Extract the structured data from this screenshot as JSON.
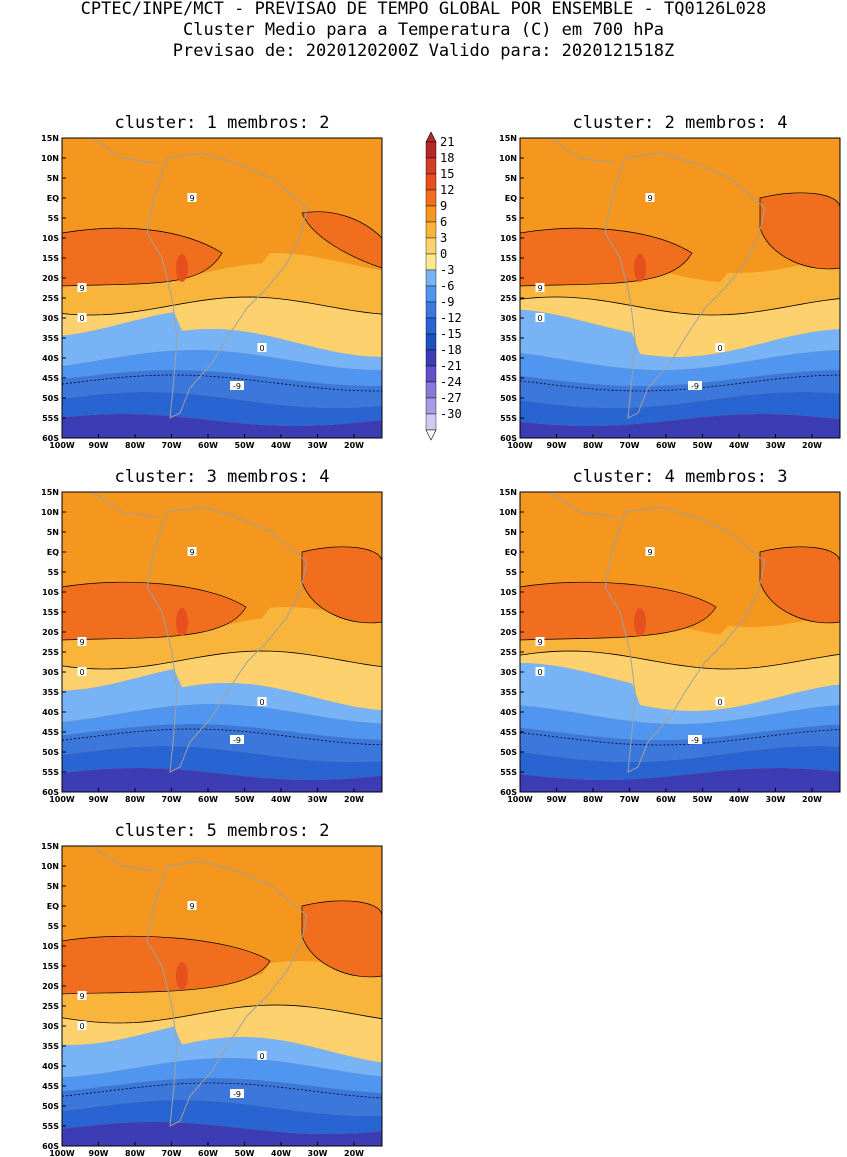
{
  "header": {
    "line1": "CPTEC/INPE/MCT - PREVISAO DE TEMPO GLOBAL POR ENSEMBLE - TQ0126L028",
    "line2": "Cluster Medio para a Temperatura (C) em 700 hPa",
    "line3": "Previsao de: 2020120200Z   Valido para: 2020121518Z"
  },
  "panels": [
    {
      "title": "cluster: 1  membros: 2"
    },
    {
      "title": "cluster: 2  membros: 4"
    },
    {
      "title": "cluster: 3  membros: 4"
    },
    {
      "title": "cluster: 4  membros: 3"
    },
    {
      "title": "cluster: 5  membros: 2"
    }
  ],
  "axes": {
    "lat_labels": [
      "15N",
      "10N",
      "5N",
      "EQ",
      "5S",
      "10S",
      "15S",
      "20S",
      "25S",
      "30S",
      "35S",
      "40S",
      "45S",
      "50S",
      "55S",
      "60S"
    ],
    "lon_labels": [
      "100W",
      "90W",
      "80W",
      "70W",
      "60W",
      "50W",
      "40W",
      "30W",
      "20W"
    ]
  },
  "colorbar": {
    "labels": [
      "21",
      "18",
      "15",
      "12",
      "9",
      "6",
      "3",
      "0",
      "-3",
      "-6",
      "-9",
      "-12",
      "-15",
      "-18",
      "-21",
      "-24",
      "-27",
      "-30"
    ],
    "colors": [
      "#b42828",
      "#d23c28",
      "#e6501e",
      "#f06e1e",
      "#f5961e",
      "#f9b43c",
      "#fdd26e",
      "#fde88c",
      "#78b4f5",
      "#5096f0",
      "#3c78dc",
      "#2864d2",
      "#1e50be",
      "#3c3cb4",
      "#6450c8",
      "#8c78d7",
      "#aa9be6",
      "#d2c8f0"
    ]
  },
  "palette": {
    "warm_red": "#f06e1e",
    "deep_red": "#e6501e",
    "orange": "#f5961e",
    "light_orange": "#f9b43c",
    "yellow": "#fdd26e",
    "pale_yellow": "#fde88c",
    "light_blue": "#78b4f5",
    "mid_blue": "#5096f0",
    "blue": "#3c78dc",
    "dark_blue": "#2864d2",
    "purple": "#3c3cb4",
    "land_line": "#a0a0a0"
  },
  "contour_labels": {
    "nine": "9",
    "zero": "0",
    "minus_nine": "-9"
  }
}
